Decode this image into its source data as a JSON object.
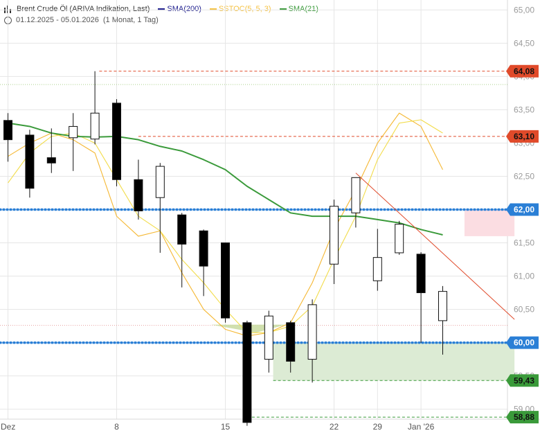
{
  "legend": {
    "instrument": "Brent Crude Öl (ARIVA Indikation, Last)",
    "indicators": [
      {
        "label": "SMA(200)",
        "color": "#1a1a8c"
      },
      {
        "label": "SSTOC(5, 5, 3)",
        "color": "#f5c242"
      },
      {
        "label": "SMA(21)",
        "color": "#3a9a3a"
      }
    ],
    "range": "01.12.2025 - 05.01.2026",
    "interval": "(1 Monat, 1 Tag)"
  },
  "chart_data": {
    "type": "candlestick",
    "ylim": [
      58.85,
      65.15
    ],
    "y_ticks": [
      "65,00",
      "64,50",
      "64,00",
      "63,50",
      "63,00",
      "62,50",
      "62,00",
      "61,50",
      "61,00",
      "60,50",
      "60,00",
      "59,50",
      "59,00"
    ],
    "x_ticks": [
      {
        "label": "Dez",
        "index": 0
      },
      {
        "label": "8",
        "index": 5
      },
      {
        "label": "15",
        "index": 10
      },
      {
        "label": "22",
        "index": 15
      },
      {
        "label": "29",
        "index": 17
      },
      {
        "label": "Jan '26",
        "index": 19
      }
    ],
    "candles": [
      {
        "o": 63.34,
        "h": 63.45,
        "l": 62.72,
        "c": 63.05
      },
      {
        "o": 63.12,
        "h": 63.2,
        "l": 62.18,
        "c": 62.32
      },
      {
        "o": 62.78,
        "h": 63.22,
        "l": 62.55,
        "c": 62.7
      },
      {
        "o": 63.08,
        "h": 63.45,
        "l": 62.58,
        "c": 63.25
      },
      {
        "o": 63.06,
        "h": 64.08,
        "l": 62.98,
        "c": 63.45
      },
      {
        "o": 63.6,
        "h": 63.66,
        "l": 62.35,
        "c": 62.45
      },
      {
        "o": 62.45,
        "h": 62.75,
        "l": 61.85,
        "c": 61.98
      },
      {
        "o": 62.18,
        "h": 62.7,
        "l": 61.35,
        "c": 62.65
      },
      {
        "o": 61.92,
        "h": 61.95,
        "l": 60.83,
        "c": 61.48
      },
      {
        "o": 61.68,
        "h": 61.7,
        "l": 60.7,
        "c": 61.15
      },
      {
        "o": 61.5,
        "h": 61.5,
        "l": 60.3,
        "c": 60.37
      },
      {
        "o": 60.3,
        "h": 60.33,
        "l": 58.75,
        "c": 58.8
      },
      {
        "o": 59.75,
        "h": 60.48,
        "l": 59.55,
        "c": 60.4
      },
      {
        "o": 60.3,
        "h": 60.33,
        "l": 59.55,
        "c": 59.72
      },
      {
        "o": 59.75,
        "h": 60.65,
        "l": 59.4,
        "c": 60.57
      },
      {
        "o": 61.18,
        "h": 62.15,
        "l": 60.88,
        "c": 62.05
      },
      {
        "o": 61.95,
        "h": 62.48,
        "l": 61.73,
        "c": 62.48
      },
      {
        "o": 60.93,
        "h": 61.71,
        "l": 60.78,
        "c": 61.28
      },
      {
        "o": 61.35,
        "h": 61.83,
        "l": 61.32,
        "c": 61.78
      },
      {
        "o": 61.33,
        "h": 61.36,
        "l": 60.0,
        "c": 60.75
      },
      {
        "o": 60.33,
        "h": 60.85,
        "l": 59.82,
        "c": 60.77
      }
    ],
    "sma21": [
      63.3,
      63.25,
      63.15,
      63.1,
      63.09,
      63.1,
      63.05,
      62.95,
      62.88,
      62.75,
      62.6,
      62.35,
      62.15,
      61.95,
      61.9,
      61.9,
      61.9,
      61.85,
      61.8,
      61.7,
      61.62
    ],
    "sstoc_k": [
      62.8,
      63.0,
      63.15,
      63.05,
      62.85,
      61.9,
      61.6,
      61.68,
      61.05,
      60.5,
      60.2,
      60.1,
      60.15,
      60.3,
      60.9,
      61.7,
      62.3,
      63.0,
      63.45,
      63.25,
      62.6
    ],
    "sstoc_d": [
      62.4,
      62.85,
      63.1,
      63.15,
      63.0,
      62.45,
      61.9,
      61.68,
      61.25,
      60.9,
      60.5,
      60.15,
      60.15,
      60.25,
      60.55,
      61.25,
      61.9,
      62.75,
      63.3,
      63.35,
      63.15
    ],
    "levels": [
      {
        "value": 64.08,
        "label": "64,08",
        "color": "#e04a2a",
        "style": "dashed-red"
      },
      {
        "value": 63.1,
        "label": "63,10",
        "color": "#e04a2a",
        "style": "dashed-red"
      },
      {
        "value": 62.0,
        "label": "62,00",
        "color": "#2a7fd6",
        "style": "dotted-blue"
      },
      {
        "value": 60.0,
        "label": "60,00",
        "color": "#2a7fd6",
        "style": "dotted-blue"
      },
      {
        "value": 59.43,
        "label": "59,43",
        "color": "#3a9a3a",
        "style": "dashed-green"
      },
      {
        "value": 58.88,
        "label": "58,88",
        "color": "#3a9a3a",
        "style": "dashed-green"
      }
    ],
    "trendline": {
      "from": {
        "index": 16,
        "value": 62.55
      },
      "to": {
        "index": 23.3,
        "value": 60.35
      },
      "color": "#e04a2a"
    },
    "zones": [
      {
        "from_index": 21,
        "to_index": 23.3,
        "y_top": 62.0,
        "y_bottom": 61.6,
        "color": "#fbdde2"
      },
      {
        "from_index": 12.2,
        "to_index": 23.3,
        "y_top": 60.0,
        "y_bottom": 59.43,
        "color": "#dcebd4"
      }
    ],
    "triangle": {
      "points": [
        [
          9.35,
          60.27
        ],
        [
          11.4,
          60.15
        ],
        [
          12.8,
          60.27
        ]
      ],
      "color": "#c8dba0"
    }
  }
}
